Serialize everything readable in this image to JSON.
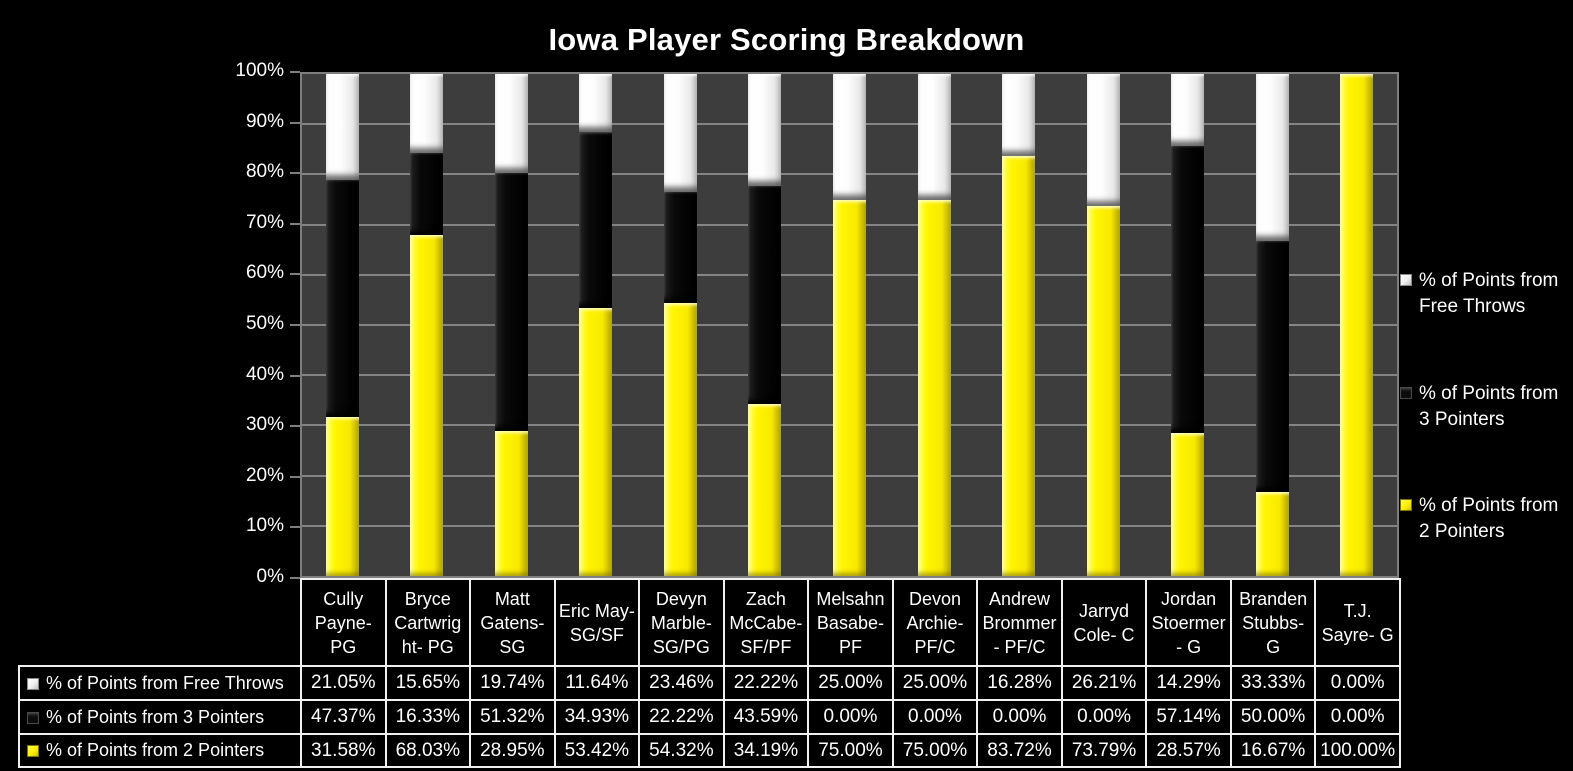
{
  "page_background": "#000000",
  "chart_data": {
    "type": "bar",
    "subtype": "stacked-100-percent",
    "title": "Iowa Player Scoring Breakdown",
    "categories": [
      "Cully Payne- PG",
      "Bryce Cartwright- PG",
      "Matt Gatens- SG",
      "Eric May- SG/SF",
      "Devyn Marble- SG/PG",
      "Zach McCabe- SF/PF",
      "Melsahn Basabe- PF",
      "Devon Archie- PF/C",
      "Andrew Brommer- PF/C",
      "Jarryd Cole- C",
      "Jordan Stoermer - G",
      "Branden Stubbs- G",
      "T.J. Sayre- G"
    ],
    "series": [
      {
        "name": "% of Points from Free Throws",
        "key": "white",
        "color": "#ffffff",
        "values": [
          21.05,
          15.65,
          19.74,
          11.64,
          23.46,
          22.22,
          25.0,
          25.0,
          16.28,
          26.21,
          14.29,
          33.33,
          0.0
        ],
        "display": [
          "21.05%",
          "15.65%",
          "19.74%",
          "11.64%",
          "23.46%",
          "22.22%",
          "25.00%",
          "25.00%",
          "16.28%",
          "26.21%",
          "14.29%",
          "33.33%",
          "0.00%"
        ]
      },
      {
        "name": "% of Points from 3 Pointers",
        "key": "black",
        "color": "#0a0a0a",
        "values": [
          47.37,
          16.33,
          51.32,
          34.93,
          22.22,
          43.59,
          0.0,
          0.0,
          0.0,
          0.0,
          57.14,
          50.0,
          0.0
        ],
        "display": [
          "47.37%",
          "16.33%",
          "51.32%",
          "34.93%",
          "22.22%",
          "43.59%",
          "0.00%",
          "0.00%",
          "0.00%",
          "0.00%",
          "57.14%",
          "50.00%",
          "0.00%"
        ]
      },
      {
        "name": "% of Points from 2 Pointers",
        "key": "yellow",
        "color": "#fff200",
        "values": [
          31.58,
          68.03,
          28.95,
          53.42,
          54.32,
          34.19,
          75.0,
          75.0,
          83.72,
          73.79,
          28.57,
          16.67,
          100.0
        ],
        "display": [
          "31.58%",
          "68.03%",
          "28.95%",
          "53.42%",
          "54.32%",
          "34.19%",
          "75.00%",
          "75.00%",
          "83.72%",
          "73.79%",
          "28.57%",
          "16.67%",
          "100.00%"
        ]
      }
    ],
    "y_axis": {
      "ticks": [
        "100%",
        "90%",
        "80%",
        "70%",
        "60%",
        "50%",
        "40%",
        "30%",
        "20%",
        "10%",
        "0%"
      ],
      "min": 0,
      "max": 100,
      "step": 10
    },
    "grid": true,
    "legend_position": "right",
    "data_table_shown": true,
    "colors": {
      "plot_background": "#3d3d3d",
      "gridline": "#848484",
      "axis_line": "#7e7e7e",
      "table_border": "#f0f0f0",
      "text": "#ffffff"
    }
  }
}
